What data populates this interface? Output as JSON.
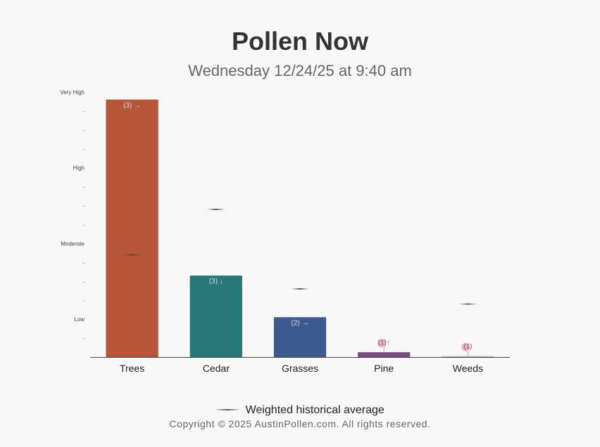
{
  "header": {
    "title": "Pollen Now",
    "subtitle": "Wednesday 12/24/25 at 9:40 am"
  },
  "legend": {
    "label": "Weighted historical average"
  },
  "footer": {
    "copyright": "Copyright © 2025 AustinPollen.com.  All rights reserved."
  },
  "chart_data": {
    "type": "bar",
    "title": "Pollen Now",
    "subtitle": "Wednesday 12/24/25 at 9:40 am",
    "categories": [
      "Trees",
      "Cedar",
      "Grasses",
      "Pine",
      "Weeds"
    ],
    "values": [
      13.6,
      4.3,
      2.1,
      0.25,
      0.03
    ],
    "value_labels": [
      "(3) →",
      "(3) ↓",
      "(2) →",
      "(1)↑",
      "(1)"
    ],
    "historical_average": [
      5.4,
      7.8,
      3.6,
      null,
      2.8
    ],
    "bar_colors": [
      "#b75636",
      "#277878",
      "#3d5a8e",
      "#7a4f7e",
      "#d7bfc6"
    ],
    "y_ticks": [
      {
        "value": 1,
        "label": "-"
      },
      {
        "value": 2,
        "label": "Low"
      },
      {
        "value": 3,
        "label": "-"
      },
      {
        "value": 4,
        "label": "-"
      },
      {
        "value": 5,
        "label": "-"
      },
      {
        "value": 6,
        "label": "Moderate"
      },
      {
        "value": 7,
        "label": "-"
      },
      {
        "value": 8,
        "label": "-"
      },
      {
        "value": 9,
        "label": "-"
      },
      {
        "value": 10,
        "label": "High"
      },
      {
        "value": 11,
        "label": "-"
      },
      {
        "value": 12,
        "label": "-"
      },
      {
        "value": 13,
        "label": "-"
      },
      {
        "value": 14,
        "label": "Very High"
      }
    ],
    "ylim": [
      0,
      14
    ],
    "legend_position": "bottom",
    "grid": false
  }
}
